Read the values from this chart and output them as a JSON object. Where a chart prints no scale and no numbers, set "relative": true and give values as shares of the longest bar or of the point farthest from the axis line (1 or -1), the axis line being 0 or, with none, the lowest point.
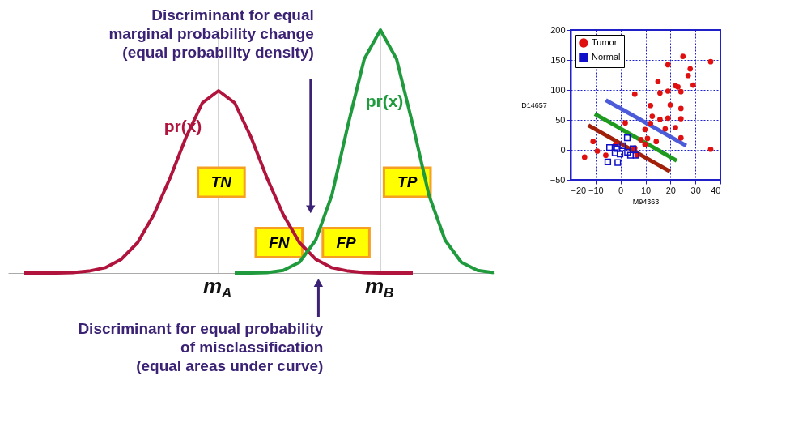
{
  "chart_data": [
    {
      "type": "line",
      "relative": true,
      "grid": "x",
      "categories": [
        null,
        null,
        null,
        null,
        null,
        null,
        null,
        null,
        null,
        null,
        null,
        null,
        null,
        "m$_{A}$",
        null,
        null,
        null,
        null,
        null,
        null,
        null,
        null,
        null,
        "m$_{B}$",
        null,
        null,
        null,
        null,
        null,
        null,
        null
      ],
      "series": [
        {
          "color": "#b0133c",
          "values": [
            null,
            0,
            0,
            0,
            0.002,
            0.008,
            0.022,
            0.057,
            0.125,
            0.24,
            0.39,
            0.56,
            0.7,
            0.75,
            0.7,
            0.56,
            0.39,
            0.24,
            0.125,
            0.057,
            0.022,
            0.008,
            0.002,
            0,
            0,
            0,
            null,
            null,
            null,
            null,
            null
          ]
        },
        {
          "color": "#1f9a3c",
          "values": [
            null,
            null,
            null,
            null,
            null,
            null,
            null,
            null,
            null,
            null,
            null,
            null,
            null,
            null,
            0,
            0,
            0.002,
            0.011,
            0.044,
            0.135,
            0.32,
            0.61,
            0.88,
            1,
            0.88,
            0.61,
            0.32,
            0.135,
            0.044,
            0.011,
            0.002
          ]
        }
      ],
      "annotations": [
        "pr(x)",
        "pr(x)",
        "TN",
        "FN",
        "FP",
        "TP",
        "Discriminant for equal\nmarginal probability change\n(equal probability density)",
        "Discriminant for equal probability\nof misclassification\n(equal areas under curve)"
      ]
    },
    {
      "type": "scatter",
      "xlabel": "M94363",
      "ylabel": "D14657",
      "xlim": [
        -20,
        40
      ],
      "xticks": [
        -20,
        -10,
        0,
        10,
        20,
        30,
        40
      ],
      "ylim": [
        -50,
        200
      ],
      "yticks": [
        -50,
        0,
        50,
        100,
        150,
        200
      ],
      "grid": true,
      "legend": "top left",
      "series": [
        {
          "name": "Tumor",
          "marker": "circle",
          "color": "#e01010",
          "x": [
            -14.4,
            -11.0,
            -9.3,
            -5.9,
            5.7,
            1.9,
            -2.0,
            5.7,
            6.7,
            9.8,
            10.8,
            9.8,
            8.2,
            12.0,
            12.7,
            12.0,
            15.0,
            15.8,
            15.8,
            14.3,
            17.9,
            19.0,
            19.0,
            19.0,
            19.9,
            22.0,
            22.0,
            23.0,
            24.2,
            24.2,
            24.2,
            24.2,
            25.0,
            27.1,
            27.9,
            29.1,
            36.1,
            36.1
          ],
          "values": [
            -12,
            14,
            -2,
            -9,
            93,
            45,
            9,
            3,
            -9,
            34,
            19,
            9,
            17,
            74,
            56,
            44,
            114,
            95,
            51,
            14,
            35,
            142,
            98,
            53,
            75,
            37,
            107,
            105,
            97,
            69,
            52,
            20,
            156,
            124,
            135,
            108,
            147,
            1
          ]
        },
        {
          "name": "Normal",
          "marker": "square",
          "color": "#1010c8",
          "x": [
            -4.4,
            -5.1,
            -2.0,
            -2.2,
            -0.2,
            -1.1,
            2.7,
            2.8,
            4.0,
            5.0,
            0.9,
            -1.4,
            6.2
          ],
          "values": [
            4,
            -20,
            4,
            -5,
            -7,
            -21,
            20,
            -4,
            -9,
            2,
            7,
            2,
            -9
          ]
        },
        {
          "type": "line",
          "color": "#4b5bd9",
          "x": [
            -5.9,
            26.3
          ],
          "values": [
            83,
            7
          ]
        },
        {
          "type": "line",
          "color": "#1e9a1e",
          "x": [
            -10.3,
            22.5
          ],
          "values": [
            60,
            -18
          ]
        },
        {
          "type": "line",
          "color": "#a0200a",
          "x": [
            -12.9,
            19.8
          ],
          "values": [
            41,
            -36
          ]
        }
      ]
    }
  ]
}
